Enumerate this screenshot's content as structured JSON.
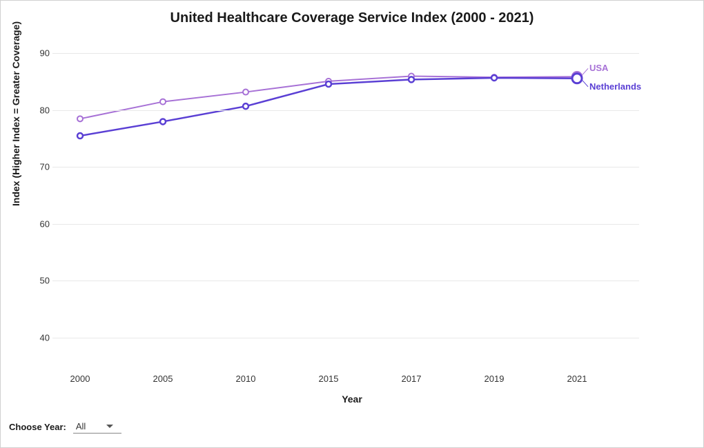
{
  "chart": {
    "type": "line",
    "title": "United Healthcare Coverage Service Index (2000 - 2021)",
    "title_fontsize": 20,
    "background_color": "#ffffff",
    "border_color": "#d0d0d0",
    "grid_color": "#e8e8e8",
    "x_axis": {
      "title": "Year",
      "title_fontsize": 14,
      "categories": [
        "2000",
        "2005",
        "2010",
        "2015",
        "2017",
        "2019",
        "2021"
      ],
      "tick_fontsize": 13,
      "tick_color": "#333333"
    },
    "y_axis": {
      "title": "Index (Higher Index = Greater Coverage)",
      "title_fontsize": 14,
      "min": 35,
      "max": 92,
      "ticks": [
        40,
        50,
        60,
        70,
        80,
        90
      ],
      "tick_fontsize": 13,
      "tick_color": "#333333"
    },
    "series": [
      {
        "name": "USA",
        "label": "USA",
        "color": "#a771d6",
        "label_color": "#a771d6",
        "line_width": 2,
        "marker": "circle",
        "marker_size": 4,
        "marker_fill": "#ffffff",
        "data": [
          78.5,
          81.5,
          83.2,
          85.1,
          86.0,
          85.8,
          85.9
        ],
        "endpoint_marker_size": 7
      },
      {
        "name": "Netherlands",
        "label": "Netherlands",
        "color": "#5a3fd4",
        "label_color": "#5a3fd4",
        "line_width": 2.5,
        "marker": "circle",
        "marker_size": 4,
        "marker_fill": "#ffffff",
        "data": [
          75.5,
          78.0,
          80.7,
          84.6,
          85.4,
          85.7,
          85.6
        ],
        "endpoint_marker_size": 7
      }
    ],
    "series_label_fontsize": 13
  },
  "controls": {
    "year_label": "Choose Year:",
    "year_value": "All"
  }
}
